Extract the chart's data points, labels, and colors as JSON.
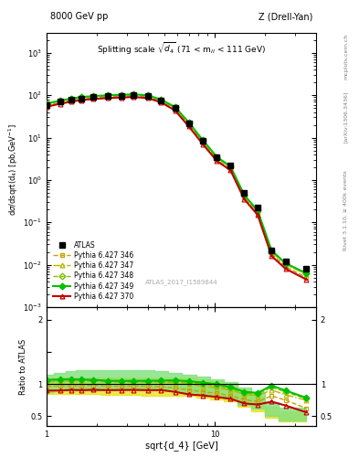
{
  "title_left": "8000 GeV pp",
  "title_right": "Z (Drell-Yan)",
  "plot_title": "Splitting scale $\\sqrt{d_4}$ (71 < m$_{ll}$ < 111 GeV)",
  "ylabel_main": "d$\\sigma$/dsqrt{d$_4$} [pb,GeV$^{-1}$]",
  "ylabel_ratio": "Ratio to ATLAS",
  "xlabel": "sqrt{d_4} [GeV]",
  "rivet_label": "Rivet 3.1.10, ≥ 400k events",
  "arxiv_label": "[arXiv:1306.3436]",
  "mcplots_label": "mcplots.cern.ch",
  "atlas_id": "ATLAS_2017_I1589844",
  "atlas_x": [
    1.0,
    1.2,
    1.4,
    1.6,
    1.9,
    2.3,
    2.8,
    3.3,
    4.0,
    4.8,
    5.8,
    7.0,
    8.5,
    10.3,
    12.4,
    15.0,
    18.0,
    21.8,
    26.4,
    35.0
  ],
  "atlas_y": [
    60,
    70,
    78,
    85,
    90,
    95,
    98,
    100,
    95,
    75,
    50,
    22,
    8.5,
    3.5,
    2.2,
    0.5,
    0.22,
    0.022,
    0.012,
    0.008
  ],
  "py346_x": [
    1.0,
    1.2,
    1.4,
    1.6,
    1.9,
    2.3,
    2.8,
    3.3,
    4.0,
    4.8,
    5.8,
    7.0,
    8.5,
    10.3,
    12.4,
    15.0,
    18.0,
    21.8,
    26.4,
    35.0
  ],
  "py346_y": [
    58,
    68,
    76,
    83,
    88,
    92,
    95,
    97,
    92,
    72,
    47,
    20,
    7.5,
    3.0,
    1.8,
    0.38,
    0.16,
    0.018,
    0.009,
    0.005
  ],
  "py347_x": [
    1.0,
    1.2,
    1.4,
    1.6,
    1.9,
    2.3,
    2.8,
    3.3,
    4.0,
    4.8,
    5.8,
    7.0,
    8.5,
    10.3,
    12.4,
    15.0,
    18.0,
    21.8,
    26.4,
    35.0
  ],
  "py347_y": [
    62,
    73,
    82,
    89,
    94,
    98,
    101,
    103,
    98,
    77,
    51,
    22,
    8.2,
    3.3,
    2.0,
    0.42,
    0.18,
    0.02,
    0.01,
    0.006
  ],
  "py348_x": [
    1.0,
    1.2,
    1.4,
    1.6,
    1.9,
    2.3,
    2.8,
    3.3,
    4.0,
    4.8,
    5.8,
    7.0,
    8.5,
    10.3,
    12.4,
    15.0,
    18.0,
    21.8,
    26.4,
    35.0
  ],
  "py348_y": [
    63,
    74,
    83,
    90,
    95,
    99,
    102,
    104,
    99,
    78,
    52,
    22.5,
    8.5,
    3.4,
    2.05,
    0.43,
    0.185,
    0.021,
    0.0105,
    0.0062
  ],
  "py349_x": [
    1.0,
    1.2,
    1.4,
    1.6,
    1.9,
    2.3,
    2.8,
    3.3,
    4.0,
    4.8,
    5.8,
    7.0,
    8.5,
    10.3,
    12.4,
    15.0,
    18.0,
    21.8,
    26.4,
    35.0
  ],
  "py349_y": [
    64,
    75,
    84,
    91,
    96,
    100,
    103,
    105,
    100,
    79,
    53,
    23,
    8.7,
    3.5,
    2.1,
    0.44,
    0.19,
    0.0215,
    0.0108,
    0.0063
  ],
  "py370_x": [
    1.0,
    1.2,
    1.4,
    1.6,
    1.9,
    2.3,
    2.8,
    3.3,
    4.0,
    4.8,
    5.8,
    7.0,
    8.5,
    10.3,
    12.4,
    15.0,
    18.0,
    21.8,
    26.4,
    35.0
  ],
  "py370_y": [
    54,
    63,
    71,
    77,
    82,
    86,
    89,
    91,
    86,
    68,
    44,
    18.5,
    7.0,
    2.8,
    1.7,
    0.35,
    0.15,
    0.016,
    0.008,
    0.0045
  ],
  "color_346": "#c8a000",
  "color_347": "#b8b800",
  "color_348": "#80c000",
  "color_349": "#00c000",
  "color_370": "#c00000",
  "color_atlas": "#000000",
  "band_346_lo": [
    0.85,
    0.85,
    0.84,
    0.84,
    0.84,
    0.83,
    0.83,
    0.83,
    0.82,
    0.82,
    0.82,
    0.82,
    0.79,
    0.76,
    0.73,
    0.65,
    0.58,
    0.47,
    0.42,
    0.42
  ],
  "band_346_hi": [
    1.1,
    1.1,
    1.1,
    1.1,
    1.1,
    1.1,
    1.1,
    1.1,
    1.1,
    1.1,
    1.1,
    1.1,
    1.08,
    1.05,
    1.0,
    0.9,
    0.8,
    0.65,
    0.58,
    0.58
  ],
  "band_349_lo": [
    0.88,
    0.9,
    0.9,
    0.91,
    0.91,
    0.92,
    0.93,
    0.93,
    0.93,
    0.92,
    0.9,
    0.88,
    0.85,
    0.82,
    0.78,
    0.68,
    0.62,
    0.5,
    0.44,
    0.44
  ],
  "band_349_hi": [
    1.15,
    1.18,
    1.2,
    1.22,
    1.22,
    1.22,
    1.22,
    1.22,
    1.22,
    1.2,
    1.18,
    1.15,
    1.12,
    1.08,
    1.03,
    0.95,
    0.88,
    0.72,
    0.64,
    0.64
  ],
  "xlim": [
    1.0,
    40.0
  ],
  "ylim_main": [
    0.001,
    3000
  ],
  "ylim_ratio": [
    0.35,
    2.2
  ]
}
